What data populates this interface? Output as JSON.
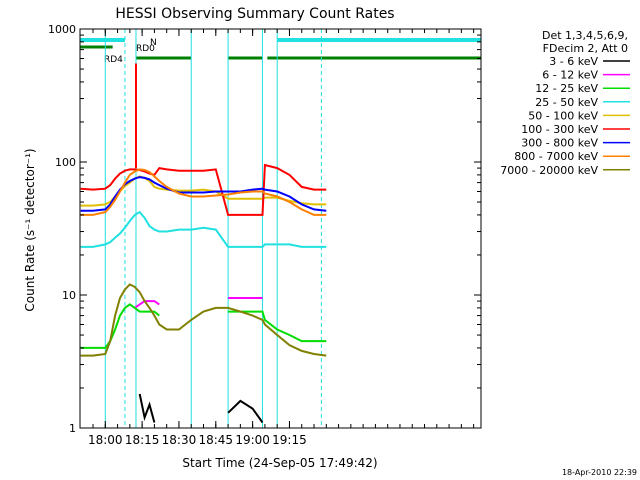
{
  "chart_data": {
    "type": "line",
    "title": "HESSI Observing Summary Count Rates",
    "xlabel": "Start Time (24-Sep-05 17:49:42)",
    "ylabel": "Count Rate (s⁻¹ detector⁻¹)",
    "yscale": "log",
    "ylim": [
      1,
      1000
    ],
    "xlim": [
      "17:49:42",
      "20:33:00"
    ],
    "x_ticks": [
      "18:00",
      "18:15",
      "18:30",
      "18:45",
      "19:00",
      "19:15"
    ],
    "y_ticks": [
      "1",
      "10",
      "100",
      "1000"
    ],
    "legend_header": [
      "Det 1,3,4,5,6,9,",
      "FDecim 2, Att 0"
    ],
    "legend_position": "right",
    "timestamp": "18-Apr-2010 22:39",
    "flags": {
      "colors": {
        "cyan": "#20e0e0",
        "green": "#008000"
      },
      "labels": {
        "N": "N",
        "RD0": "RD0",
        "RD4": "RD4"
      },
      "night_intervals": [
        [
          "17:49:42",
          "18:08:00"
        ],
        [
          "19:10:00",
          "20:33:00"
        ]
      ],
      "saa_intervals": [
        [
          "17:49:42",
          "18:03:00"
        ],
        [
          "18:12:30",
          "18:35:00"
        ],
        [
          "18:50:00",
          "19:04:00"
        ],
        [
          "19:06:00",
          "20:33:00"
        ]
      ]
    },
    "vlines": {
      "solid": [
        "17:49:42",
        "18:00:00",
        "18:12:30",
        "18:35:00",
        "18:50:00",
        "19:04:00",
        "19:10:00"
      ],
      "dashed": [
        "18:08:00",
        "19:28:00"
      ]
    },
    "x_times": [
      "17:50",
      "17:55",
      "18:00",
      "18:02",
      "18:04",
      "18:06",
      "18:08",
      "18:10",
      "18:12",
      "18:14",
      "18:16",
      "18:18",
      "18:20",
      "18:22",
      "18:25",
      "18:30",
      "18:35",
      "18:40",
      "18:45",
      "18:50",
      "18:55",
      "19:00",
      "19:04",
      "19:05",
      "19:10",
      "19:15",
      "19:20",
      "19:25",
      "19:30"
    ],
    "series": [
      {
        "name": "3 - 6 keV",
        "color": "#000000",
        "values": [
          null,
          null,
          null,
          null,
          null,
          null,
          null,
          null,
          null,
          1.8,
          1.2,
          1.5,
          1.1,
          null,
          null,
          null,
          null,
          null,
          null,
          1.3,
          1.6,
          1.4,
          1.1,
          null,
          null,
          null,
          null,
          null,
          null
        ]
      },
      {
        "name": "6 - 12 keV",
        "color": "#ff00ff",
        "values": [
          null,
          null,
          null,
          null,
          null,
          null,
          null,
          null,
          8,
          8.5,
          9,
          9,
          9,
          8.5,
          null,
          null,
          null,
          null,
          null,
          9.5,
          9.5,
          9.5,
          9.5,
          null,
          null,
          null,
          null,
          null,
          null
        ]
      },
      {
        "name": "12 - 25 keV",
        "color": "#00dd00",
        "values": [
          4,
          4,
          4,
          4.5,
          5.5,
          7,
          8,
          8.5,
          8,
          7.5,
          7.5,
          7.5,
          7.5,
          7,
          null,
          null,
          null,
          null,
          null,
          7.5,
          7.5,
          7.5,
          7.5,
          6.5,
          5.5,
          5,
          4.5,
          4.5,
          4.5
        ]
      },
      {
        "name": "25 - 50 keV",
        "color": "#20e0e0",
        "values": [
          23,
          23,
          24,
          25,
          27,
          29,
          32,
          36,
          40,
          42,
          38,
          33,
          31,
          30,
          30,
          31,
          31,
          32,
          31,
          23,
          23,
          23,
          23,
          24,
          24,
          24,
          23,
          23,
          23
        ]
      },
      {
        "name": "50 - 100 keV",
        "color": "#e0c000",
        "values": [
          47,
          47,
          48,
          50,
          55,
          60,
          66,
          70,
          75,
          78,
          76,
          72,
          65,
          63,
          62,
          61,
          61,
          62,
          60,
          53,
          53,
          53,
          53,
          54,
          54,
          51,
          49,
          48,
          48
        ]
      },
      {
        "name": "100 - 300 keV",
        "color": "#ff0000",
        "values": [
          63,
          62,
          63,
          67,
          75,
          82,
          86,
          88,
          88,
          87,
          85,
          82,
          80,
          90,
          88,
          86,
          86,
          86,
          88,
          40,
          40,
          40,
          40,
          95,
          90,
          80,
          65,
          62,
          62
        ]
      },
      {
        "name": "300 - 800 keV",
        "color": "#0000ff",
        "values": [
          43,
          43,
          44,
          48,
          55,
          62,
          68,
          72,
          75,
          77,
          76,
          74,
          70,
          67,
          63,
          59,
          59,
          59,
          60,
          60,
          60,
          62,
          63,
          62,
          60,
          55,
          48,
          44,
          43
        ]
      },
      {
        "name": "800 - 7000 keV",
        "color": "#ff8000",
        "values": [
          40,
          40,
          42,
          46,
          52,
          60,
          70,
          80,
          85,
          88,
          87,
          84,
          78,
          72,
          65,
          58,
          55,
          55,
          56,
          57,
          59,
          60,
          60,
          58,
          55,
          50,
          44,
          40,
          40
        ]
      },
      {
        "name": "7000 - 20000 keV",
        "color": "#808000",
        "values": [
          3.5,
          3.5,
          3.6,
          4.5,
          7,
          9.5,
          11,
          12,
          11.5,
          10.5,
          9,
          8,
          7,
          6,
          5.5,
          5.5,
          6.5,
          7.5,
          8,
          8,
          7.5,
          7,
          6.5,
          6,
          5,
          4.2,
          3.8,
          3.6,
          3.5
        ]
      }
    ],
    "spike": {
      "time": "18:12:30",
      "series_index": 5,
      "peak": 550
    }
  }
}
